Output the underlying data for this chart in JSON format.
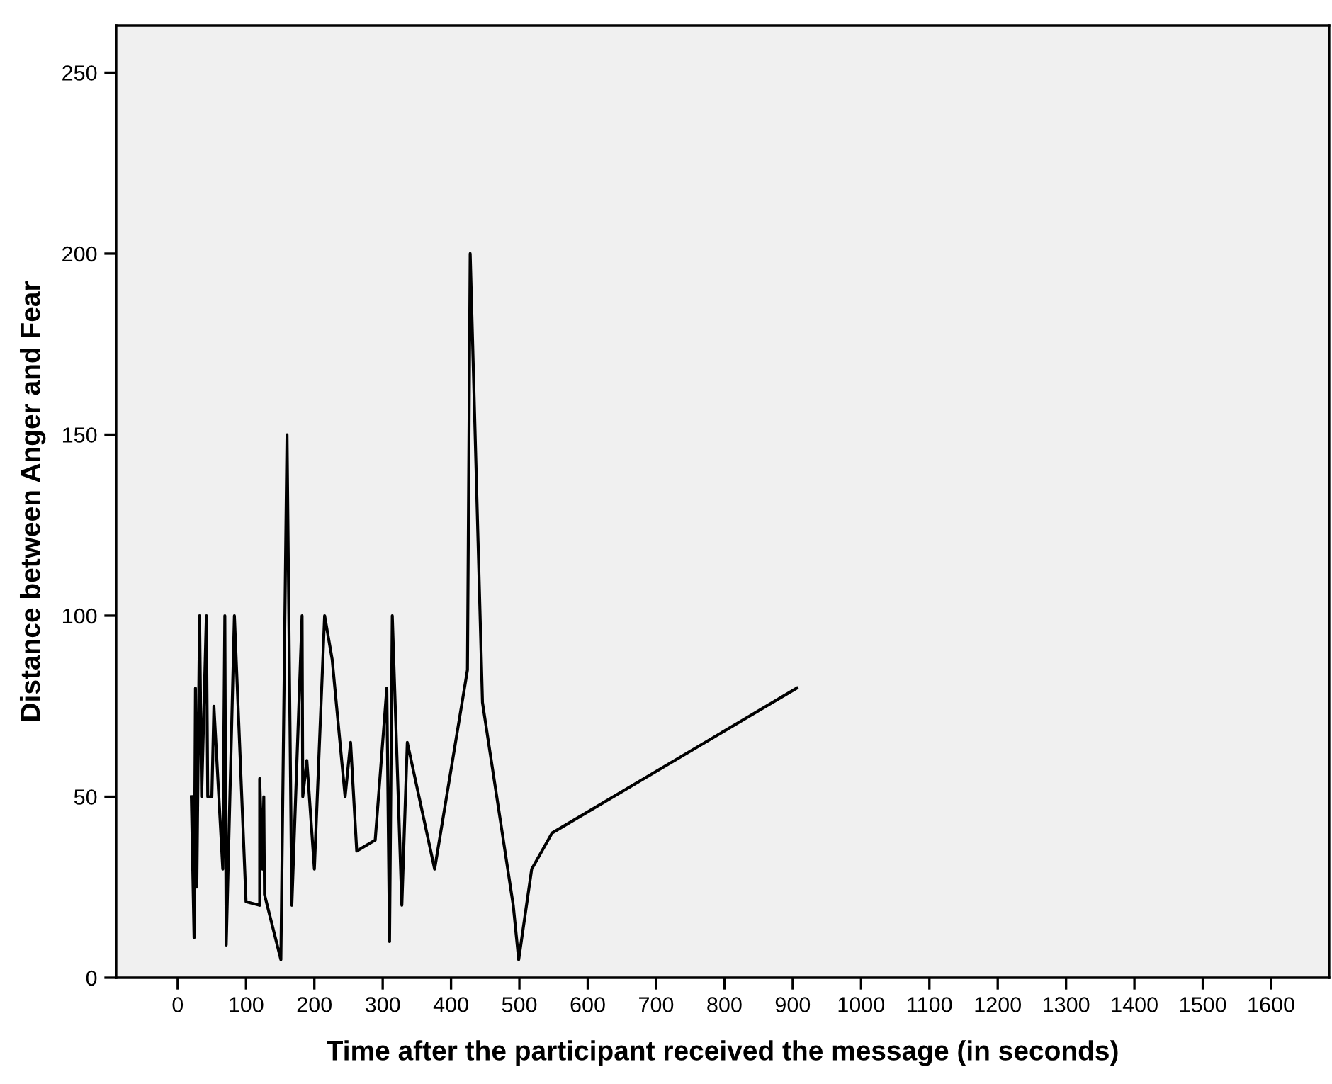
{
  "chart_data": {
    "type": "line",
    "xlabel": "Time after the participant received the message (in seconds)",
    "ylabel": "Distance between Anger and Fear",
    "series": [
      {
        "color": "#000000",
        "x": [
          20,
          24,
          26,
          28,
          32,
          35,
          42,
          44,
          50,
          53,
          66,
          69,
          71,
          83,
          100,
          120,
          120,
          124,
          126,
          127,
          151,
          160,
          167,
          182,
          183,
          189,
          200,
          215,
          226,
          245,
          253,
          262,
          289,
          306,
          310,
          314,
          328,
          336,
          376,
          424,
          428,
          446,
          491,
          499,
          518,
          548,
          906
        ],
        "values": [
          50,
          11,
          80,
          25,
          100,
          50,
          100,
          50,
          50,
          75,
          30,
          100,
          9,
          100,
          21,
          20,
          55,
          30,
          50,
          23,
          5,
          150,
          20,
          100,
          50,
          60,
          30,
          100,
          88,
          50,
          65,
          35,
          38,
          80,
          10,
          100,
          20,
          65,
          30,
          85,
          200,
          76,
          20,
          5,
          30,
          40,
          80
        ]
      }
    ],
    "xlim": [
      -90,
      1685
    ],
    "ylim": [
      0,
      263
    ],
    "xticks": [
      0,
      100,
      200,
      300,
      400,
      500,
      600,
      700,
      800,
      900,
      1000,
      1100,
      1200,
      1300,
      1400,
      1500,
      1600
    ],
    "yticks": [
      0,
      50,
      100,
      150,
      200,
      250
    ],
    "grid": false,
    "legend": false,
    "marker": "none",
    "line_style": "solid"
  }
}
